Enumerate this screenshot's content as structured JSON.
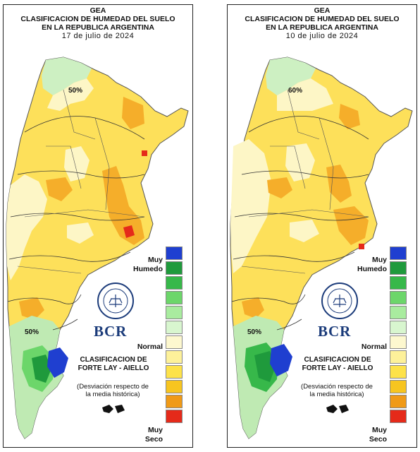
{
  "maps": [
    {
      "title_line1": "GEA",
      "title_line2": "CLASIFICACION DE HUMEDAD DEL SUELO",
      "title_line3": "EN LA REPUBLICA ARGENTINA",
      "date": "17 de julio de 2024",
      "pct_north": "50%",
      "pct_south": "50%"
    },
    {
      "title_line1": "GEA",
      "title_line2": "CLASIFICACION DE HUMEDAD DEL SUELO",
      "title_line3": "EN LA REPUBLICA ARGENTINA",
      "date": "10 de julio de 2024",
      "pct_north": "60%",
      "pct_south": "50%"
    }
  ],
  "legend": {
    "top_label_1": "Muy",
    "top_label_2": "Humedo",
    "middle_label": "Normal",
    "bottom_label_1": "Muy",
    "bottom_label_2": "Seco",
    "colors": [
      "#1f3fd0",
      "#1f9a3c",
      "#37b84a",
      "#6cd66a",
      "#a9ec9f",
      "#d8f6cf",
      "#fdf8cf",
      "#fdf19a",
      "#fde24a",
      "#f7c520",
      "#f09a17",
      "#e52a1a"
    ]
  },
  "classification": {
    "title_1": "CLASIFICACION DE",
    "title_2": "FORTE LAY - AIELLO",
    "subtitle_1": "(Desviación respecto de",
    "subtitle_2": "la media histórica)"
  },
  "logo": {
    "brand": "BCR"
  }
}
